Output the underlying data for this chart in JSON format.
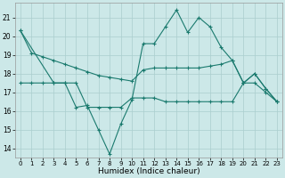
{
  "xlabel": "Humidex (Indice chaleur)",
  "x": [
    0,
    1,
    2,
    3,
    4,
    5,
    6,
    7,
    8,
    9,
    10,
    11,
    12,
    13,
    14,
    15,
    16,
    17,
    18,
    19,
    20,
    21,
    22,
    23
  ],
  "line1": [
    20.3,
    19.1,
    18.9,
    18.7,
    18.5,
    18.3,
    18.1,
    17.9,
    17.8,
    17.7,
    17.6,
    18.2,
    18.3,
    18.3,
    18.3,
    18.3,
    18.3,
    18.4,
    18.5,
    18.7,
    17.5,
    18.0,
    17.2,
    16.5
  ],
  "line2": [
    17.5,
    17.5,
    17.5,
    17.5,
    17.5,
    17.5,
    16.2,
    16.2,
    16.2,
    16.2,
    16.7,
    16.7,
    16.7,
    16.5,
    16.5,
    16.5,
    16.5,
    16.5,
    16.5,
    16.5,
    17.5,
    17.5,
    17.0,
    16.5
  ],
  "line3_x": [
    0,
    3,
    4,
    5,
    6,
    7,
    8,
    9,
    10,
    11,
    12,
    13,
    14,
    15,
    16,
    17,
    18,
    19,
    20,
    21,
    22,
    23
  ],
  "line3": [
    20.3,
    17.5,
    17.5,
    16.2,
    16.3,
    15.0,
    13.7,
    15.3,
    16.6,
    19.6,
    19.6,
    20.5,
    21.4,
    20.2,
    21.0,
    20.5,
    19.4,
    18.7,
    17.5,
    18.0,
    17.2,
    16.5
  ],
  "ylim": [
    13.5,
    21.8
  ],
  "yticks": [
    14,
    15,
    16,
    17,
    18,
    19,
    20,
    21
  ],
  "color": "#1a7a6e",
  "bg_color": "#cce8e8",
  "grid_color": "#aacece"
}
